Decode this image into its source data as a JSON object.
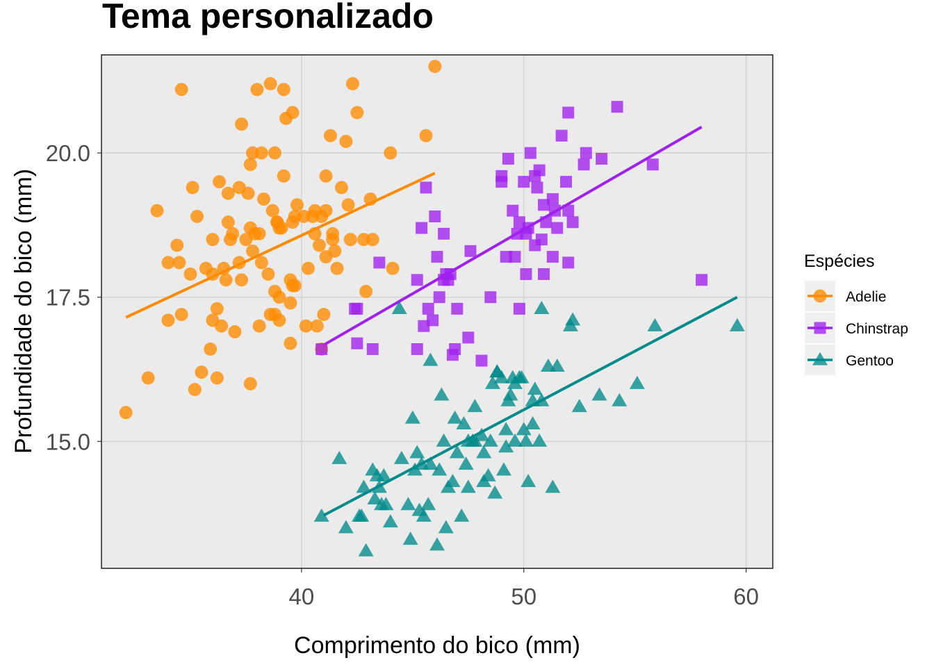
{
  "chart_data": {
    "type": "scatter",
    "title": "Tema personalizado",
    "xlabel": "Comprimento do bico (mm)",
    "ylabel": "Profundidade do bico (mm)",
    "xlim": [
      31,
      61.2
    ],
    "ylim": [
      12.8,
      21.7
    ],
    "x_ticks": [
      40,
      50,
      60
    ],
    "x_tick_labels": [
      "40",
      "50",
      "60"
    ],
    "y_ticks": [
      15.0,
      17.5,
      20.0
    ],
    "y_tick_labels": [
      "15.0",
      "17.5",
      "20.0"
    ],
    "grid": true,
    "background": "#ebebeb",
    "legend": {
      "title": "Espécies",
      "position": "right"
    },
    "series": [
      {
        "name": "Adelie",
        "color": "#ff8c00",
        "shape": "circle",
        "trend": [
          [
            32.1,
            17.15
          ],
          [
            46.0,
            19.65
          ]
        ],
        "points": [
          [
            32.1,
            15.5
          ],
          [
            33.1,
            16.1
          ],
          [
            33.5,
            19.0
          ],
          [
            34.0,
            17.1
          ],
          [
            34.0,
            18.1
          ],
          [
            34.4,
            18.4
          ],
          [
            34.5,
            18.1
          ],
          [
            34.6,
            17.2
          ],
          [
            34.6,
            21.1
          ],
          [
            35.1,
            19.4
          ],
          [
            35.2,
            15.9
          ],
          [
            35.5,
            16.2
          ],
          [
            35.7,
            18.0
          ],
          [
            35.9,
            16.6
          ],
          [
            36.0,
            18.5
          ],
          [
            36.0,
            17.1
          ],
          [
            36.2,
            17.3
          ],
          [
            36.2,
            16.1
          ],
          [
            36.3,
            19.5
          ],
          [
            36.4,
            17.0
          ],
          [
            36.5,
            18.0
          ],
          [
            36.6,
            17.8
          ],
          [
            36.7,
            19.3
          ],
          [
            36.7,
            18.8
          ],
          [
            36.9,
            18.6
          ],
          [
            37.0,
            16.9
          ],
          [
            37.2,
            18.1
          ],
          [
            37.3,
            17.8
          ],
          [
            37.5,
            18.5
          ],
          [
            37.6,
            19.3
          ],
          [
            37.7,
            16.0
          ],
          [
            37.7,
            18.7
          ],
          [
            37.8,
            18.3
          ],
          [
            37.8,
            20.0
          ],
          [
            37.9,
            18.6
          ],
          [
            38.1,
            18.6
          ],
          [
            38.1,
            17.0
          ],
          [
            38.2,
            18.1
          ],
          [
            38.2,
            20.0
          ],
          [
            38.3,
            19.2
          ],
          [
            38.5,
            17.9
          ],
          [
            38.6,
            21.2
          ],
          [
            38.6,
            17.2
          ],
          [
            38.7,
            19.0
          ],
          [
            38.8,
            17.2
          ],
          [
            38.8,
            20.0
          ],
          [
            38.9,
            18.8
          ],
          [
            39.0,
            17.5
          ],
          [
            39.0,
            18.7
          ],
          [
            39.1,
            18.7
          ],
          [
            39.2,
            19.6
          ],
          [
            39.2,
            21.1
          ],
          [
            39.3,
            20.6
          ],
          [
            39.5,
            16.7
          ],
          [
            39.5,
            17.4
          ],
          [
            39.6,
            18.8
          ],
          [
            39.6,
            17.7
          ],
          [
            39.7,
            18.9
          ],
          [
            39.7,
            17.7
          ],
          [
            39.8,
            19.1
          ],
          [
            40.1,
            18.9
          ],
          [
            40.2,
            17.0
          ],
          [
            40.3,
            18.0
          ],
          [
            40.5,
            18.9
          ],
          [
            40.6,
            18.6
          ],
          [
            40.7,
            17.0
          ],
          [
            40.8,
            18.4
          ],
          [
            40.9,
            18.9
          ],
          [
            41.0,
            17.2
          ],
          [
            41.1,
            18.2
          ],
          [
            41.1,
            19.0
          ],
          [
            41.3,
            20.3
          ],
          [
            41.4,
            18.5
          ],
          [
            41.5,
            18.3
          ],
          [
            41.6,
            18.0
          ],
          [
            41.8,
            19.4
          ],
          [
            42.0,
            20.2
          ],
          [
            42.2,
            18.5
          ],
          [
            42.3,
            21.2
          ],
          [
            42.5,
            20.7
          ],
          [
            42.8,
            18.5
          ],
          [
            42.9,
            17.6
          ],
          [
            43.1,
            19.2
          ],
          [
            43.2,
            18.5
          ],
          [
            44.0,
            20.0
          ],
          [
            44.1,
            18.0
          ],
          [
            45.6,
            20.3
          ],
          [
            46.0,
            21.5
          ],
          [
            35.3,
            18.9
          ],
          [
            36.8,
            18.5
          ],
          [
            37.2,
            19.4
          ],
          [
            37.3,
            20.5
          ],
          [
            37.7,
            19.8
          ],
          [
            38.0,
            21.1
          ],
          [
            38.8,
            17.6
          ],
          [
            39.0,
            17.1
          ],
          [
            39.6,
            20.7
          ],
          [
            40.9,
            16.6
          ],
          [
            41.1,
            19.6
          ],
          [
            42.1,
            19.1
          ],
          [
            35.0,
            17.9
          ],
          [
            36.0,
            17.9
          ],
          [
            38.9,
            18.8
          ],
          [
            39.5,
            17.8
          ],
          [
            40.6,
            19.0
          ],
          [
            41.4,
            18.6
          ]
        ]
      },
      {
        "name": "Chinstrap",
        "color": "#a020f0",
        "shape": "square",
        "trend": [
          [
            40.9,
            16.65
          ],
          [
            58.0,
            20.45
          ]
        ],
        "points": [
          [
            40.9,
            16.6
          ],
          [
            42.4,
            17.3
          ],
          [
            42.5,
            16.7
          ],
          [
            42.5,
            17.3
          ],
          [
            43.2,
            16.6
          ],
          [
            43.5,
            18.1
          ],
          [
            45.2,
            16.6
          ],
          [
            45.2,
            17.8
          ],
          [
            45.4,
            18.7
          ],
          [
            45.5,
            17.0
          ],
          [
            45.6,
            19.4
          ],
          [
            45.7,
            17.3
          ],
          [
            45.9,
            17.1
          ],
          [
            46.0,
            18.9
          ],
          [
            46.1,
            18.2
          ],
          [
            46.2,
            17.5
          ],
          [
            46.4,
            17.8
          ],
          [
            46.5,
            17.9
          ],
          [
            46.6,
            17.8
          ],
          [
            46.7,
            17.9
          ],
          [
            46.8,
            16.5
          ],
          [
            46.9,
            16.6
          ],
          [
            47.5,
            16.8
          ],
          [
            47.6,
            18.3
          ],
          [
            48.1,
            16.4
          ],
          [
            48.5,
            17.5
          ],
          [
            49.0,
            19.5
          ],
          [
            49.2,
            18.2
          ],
          [
            49.3,
            19.9
          ],
          [
            49.5,
            19.0
          ],
          [
            49.6,
            18.2
          ],
          [
            49.7,
            18.6
          ],
          [
            49.8,
            17.3
          ],
          [
            50.0,
            19.5
          ],
          [
            50.1,
            17.9
          ],
          [
            50.2,
            18.7
          ],
          [
            50.3,
            20.0
          ],
          [
            50.5,
            18.4
          ],
          [
            50.6,
            19.4
          ],
          [
            50.7,
            19.7
          ],
          [
            50.8,
            18.5
          ],
          [
            50.9,
            17.9
          ],
          [
            50.9,
            19.1
          ],
          [
            51.0,
            18.8
          ],
          [
            51.3,
            19.2
          ],
          [
            51.4,
            19.0
          ],
          [
            51.5,
            18.7
          ],
          [
            51.7,
            20.3
          ],
          [
            52.0,
            19.0
          ],
          [
            52.0,
            20.7
          ],
          [
            52.0,
            18.1
          ],
          [
            52.2,
            18.8
          ],
          [
            52.7,
            19.8
          ],
          [
            52.8,
            20.0
          ],
          [
            53.5,
            19.9
          ],
          [
            54.2,
            20.8
          ],
          [
            55.8,
            19.8
          ],
          [
            58.0,
            17.8
          ],
          [
            46.4,
            18.6
          ],
          [
            49.0,
            19.6
          ],
          [
            49.8,
            18.8
          ],
          [
            50.5,
            19.6
          ],
          [
            51.3,
            18.2
          ],
          [
            51.9,
            19.5
          ],
          [
            47.0,
            17.3
          ],
          [
            50.1,
            18.6
          ]
        ]
      },
      {
        "name": "Gentoo",
        "color": "#008b8b",
        "shape": "triangle",
        "trend": [
          [
            41.0,
            13.72
          ],
          [
            59.6,
            17.5
          ]
        ],
        "points": [
          [
            40.9,
            13.7
          ],
          [
            41.7,
            14.7
          ],
          [
            42.0,
            13.5
          ],
          [
            42.6,
            13.7
          ],
          [
            42.7,
            13.7
          ],
          [
            42.8,
            14.2
          ],
          [
            42.9,
            13.1
          ],
          [
            43.2,
            14.5
          ],
          [
            43.3,
            14.0
          ],
          [
            43.4,
            14.4
          ],
          [
            43.5,
            14.2
          ],
          [
            43.6,
            13.9
          ],
          [
            43.8,
            13.9
          ],
          [
            44.0,
            13.6
          ],
          [
            44.4,
            17.3
          ],
          [
            44.5,
            14.7
          ],
          [
            44.9,
            13.3
          ],
          [
            45.0,
            15.4
          ],
          [
            45.1,
            14.5
          ],
          [
            45.2,
            14.8
          ],
          [
            45.3,
            13.8
          ],
          [
            45.4,
            14.6
          ],
          [
            45.5,
            13.7
          ],
          [
            45.7,
            13.9
          ],
          [
            45.8,
            14.6
          ],
          [
            46.1,
            13.2
          ],
          [
            46.2,
            14.5
          ],
          [
            46.3,
            15.8
          ],
          [
            46.4,
            15.0
          ],
          [
            46.5,
            13.5
          ],
          [
            46.6,
            14.2
          ],
          [
            46.8,
            14.3
          ],
          [
            47.0,
            14.8
          ],
          [
            47.2,
            13.7
          ],
          [
            47.3,
            15.3
          ],
          [
            47.4,
            14.6
          ],
          [
            47.5,
            14.2
          ],
          [
            47.7,
            15.0
          ],
          [
            47.8,
            15.0
          ],
          [
            48.1,
            15.1
          ],
          [
            48.2,
            14.3
          ],
          [
            48.4,
            14.4
          ],
          [
            48.5,
            15.0
          ],
          [
            48.6,
            16.0
          ],
          [
            48.7,
            14.1
          ],
          [
            48.8,
            16.2
          ],
          [
            49.0,
            16.1
          ],
          [
            49.1,
            14.5
          ],
          [
            49.2,
            15.2
          ],
          [
            49.3,
            15.7
          ],
          [
            49.4,
            15.8
          ],
          [
            49.5,
            16.1
          ],
          [
            49.6,
            15.0
          ],
          [
            49.8,
            16.1
          ],
          [
            49.9,
            16.1
          ],
          [
            50.0,
            15.2
          ],
          [
            50.1,
            15.0
          ],
          [
            50.2,
            14.3
          ],
          [
            50.4,
            15.3
          ],
          [
            50.5,
            15.9
          ],
          [
            50.7,
            15.0
          ],
          [
            50.8,
            15.7
          ],
          [
            51.1,
            16.3
          ],
          [
            51.3,
            14.2
          ],
          [
            51.5,
            16.3
          ],
          [
            52.1,
            17.0
          ],
          [
            52.2,
            17.1
          ],
          [
            52.5,
            15.6
          ],
          [
            53.4,
            15.8
          ],
          [
            54.3,
            15.7
          ],
          [
            55.1,
            16.0
          ],
          [
            55.9,
            17.0
          ],
          [
            59.6,
            17.0
          ],
          [
            45.8,
            16.4
          ],
          [
            47.8,
            15.6
          ],
          [
            48.8,
            16.2
          ],
          [
            49.6,
            16.0
          ],
          [
            50.4,
            15.7
          ],
          [
            50.8,
            17.3
          ],
          [
            43.7,
            14.4
          ],
          [
            44.8,
            13.9
          ],
          [
            46.9,
            15.4
          ],
          [
            47.5,
            15.0
          ],
          [
            48.2,
            14.8
          ],
          [
            49.2,
            14.9
          ]
        ]
      }
    ]
  }
}
